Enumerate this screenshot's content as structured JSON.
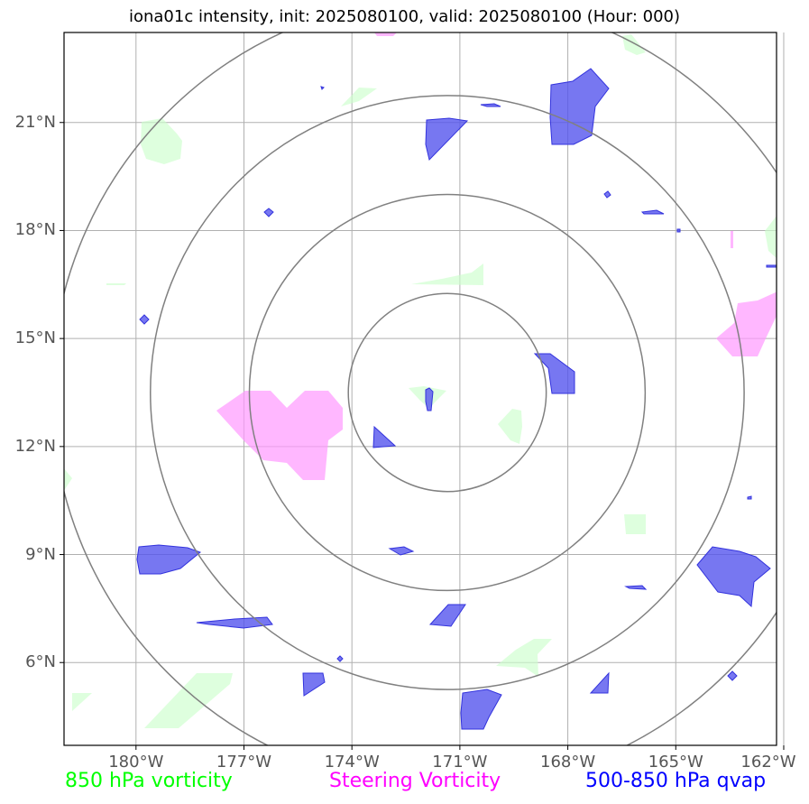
{
  "title": "iona01c intensity, init: 2025080100, valid: 2025080100 (Hour: 000)",
  "map": {
    "lon_range": [
      -182,
      -162.2
    ],
    "lat_range": [
      3.7,
      23.5
    ],
    "lat_ticks": [
      {
        "value": 21,
        "label": "21°N"
      },
      {
        "value": 18,
        "label": "18°N"
      },
      {
        "value": 15,
        "label": "15°N"
      },
      {
        "value": 12,
        "label": "12°N"
      },
      {
        "value": 9,
        "label": "9°N"
      },
      {
        "value": 6,
        "label": "6°N"
      }
    ],
    "lon_ticks": [
      {
        "value": -180,
        "label": "180°W"
      },
      {
        "value": -177,
        "label": "177°W"
      },
      {
        "value": -174,
        "label": "174°W"
      },
      {
        "value": -171,
        "label": "171°W"
      },
      {
        "value": -168,
        "label": "168°W"
      },
      {
        "value": -165,
        "label": "165°W"
      },
      {
        "value": -162,
        "label": "162°W"
      }
    ],
    "storm_center": {
      "lon": -171.35,
      "lat": 13.5
    },
    "range_rings_deg": [
      2.75,
      5.5,
      8.25,
      11.0
    ],
    "colors": {
      "vorticity_850": "#ccffcc",
      "steering_vorticity": "#ff99ff",
      "qvap": "#5555ee",
      "rings": "#808080",
      "grid": "#b0b0b0"
    }
  },
  "legend": {
    "vort850": {
      "label": "850 hPa vorticity",
      "color": "#00ff00"
    },
    "steering": {
      "label": "Steering Vorticity",
      "color": "#ff00ff"
    },
    "qvap": {
      "label": "500-850 hPa qvap",
      "color": "#0000ff"
    }
  }
}
